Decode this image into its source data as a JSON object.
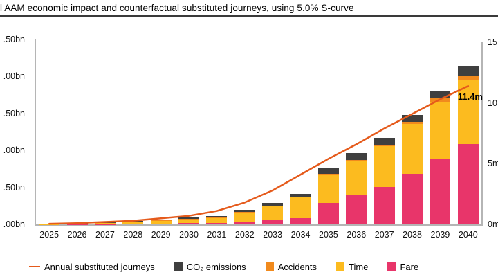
{
  "title": "l AAM economic impact and counterfactual substituted journeys, using 5.0% S-curve",
  "legend": {
    "items": [
      {
        "label": "Annual substituted journeys",
        "swatch": "line",
        "color": "#e55a1b"
      },
      {
        "label": "CO₂ emissions",
        "swatch": "square",
        "color": "#3f3f3f"
      },
      {
        "label": "Accidents",
        "swatch": "square",
        "color": "#f18a1d"
      },
      {
        "label": "Time",
        "swatch": "square",
        "color": "#fcbb1f"
      },
      {
        "label": "Fare",
        "swatch": "square",
        "color": "#e8356a"
      }
    ]
  },
  "chart_data": {
    "type": "combo",
    "bar_mode": "stacked",
    "title": "l AAM economic impact and counterfactual substituted journeys, using 5.0% S-curve",
    "categories": [
      "2025",
      "2026",
      "2027",
      "2028",
      "2029",
      "2030",
      "2031",
      "2032",
      "2033",
      "2034",
      "2035",
      "2036",
      "2037",
      "2038",
      "2039",
      "2040"
    ],
    "series": [
      {
        "name": "Fare",
        "type": "bar",
        "axis": "left",
        "color": "#e8356a",
        "values": [
          0.0,
          0.001,
          0.003,
          0.005,
          0.01,
          0.015,
          0.02,
          0.04,
          0.065,
          0.085,
          0.29,
          0.4,
          0.51,
          0.68,
          0.89,
          1.09
        ]
      },
      {
        "name": "Time",
        "type": "bar",
        "axis": "left",
        "color": "#fcbb1f",
        "values": [
          0.004,
          0.01,
          0.02,
          0.03,
          0.042,
          0.055,
          0.065,
          0.125,
          0.18,
          0.28,
          0.38,
          0.46,
          0.55,
          0.68,
          0.77,
          0.86
        ]
      },
      {
        "name": "Accidents",
        "type": "bar",
        "axis": "left",
        "color": "#f18a1d",
        "values": [
          0.0,
          0.001,
          0.001,
          0.002,
          0.003,
          0.005,
          0.005,
          0.005,
          0.005,
          0.005,
          0.01,
          0.015,
          0.02,
          0.03,
          0.045,
          0.05
        ]
      },
      {
        "name": "CO₂ emissions",
        "type": "bar",
        "axis": "left",
        "color": "#3f3f3f",
        "values": [
          0.001,
          0.003,
          0.006,
          0.01,
          0.015,
          0.02,
          0.025,
          0.03,
          0.04,
          0.045,
          0.075,
          0.085,
          0.095,
          0.085,
          0.1,
          0.14
        ]
      },
      {
        "name": "Annual substituted journeys",
        "type": "line",
        "axis": "right",
        "color": "#e55a1b",
        "values": [
          0.05,
          0.1,
          0.2,
          0.3,
          0.5,
          0.7,
          1.1,
          1.8,
          2.8,
          4.1,
          5.4,
          6.6,
          7.9,
          9.1,
          10.3,
          11.4
        ]
      }
    ],
    "left_axis": {
      "unit": "bn (economic impact, stacked bars)",
      "range": [
        0,
        2.5
      ],
      "ticks": [
        {
          "label": ".50bn",
          "value": 2.5
        },
        {
          "label": ".00bn",
          "value": 2.0
        },
        {
          "label": ".50bn",
          "value": 1.5
        },
        {
          "label": ".00bn",
          "value": 1.0
        },
        {
          "label": ".50bn",
          "value": 0.5
        },
        {
          "label": ".00bn",
          "value": 0.0
        }
      ]
    },
    "right_axis": {
      "unit": "m journeys (line)",
      "range": [
        0,
        15
      ],
      "ticks": [
        {
          "label": "15",
          "value": 15
        },
        {
          "label": "10",
          "value": 10
        },
        {
          "label": "5m",
          "value": 5
        },
        {
          "label": "0m",
          "value": 0
        }
      ]
    },
    "annotation": {
      "text": "11.4m",
      "category": "2040",
      "value": 11.4
    },
    "grid": false,
    "legend_position": "bottom"
  }
}
